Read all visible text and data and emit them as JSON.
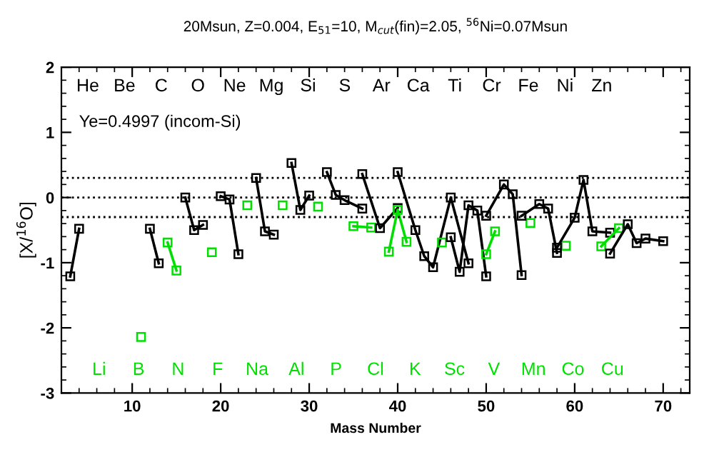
{
  "chart_data": {
    "type": "line",
    "title": "20Msun, Z=0.004, E$_{51}$=10, M$_{cut}$(fin)=2.05, $^{56}$Ni=0.07Msun",
    "xlabel": "Mass Number",
    "ylabel": "[X/$^{16}$O]",
    "xlim": [
      2,
      73
    ],
    "ylim": [
      -3,
      2
    ],
    "xticks": [
      10,
      20,
      30,
      40,
      50,
      60,
      70
    ],
    "yticks": [
      -3,
      -2,
      -1,
      0,
      1,
      2
    ],
    "marker": "square",
    "line_style": "solid",
    "legend": false,
    "grid": false,
    "ref_lines": [
      {
        "axis": "y",
        "value": 0.3,
        "line_style": "dotted",
        "color": "#000000"
      },
      {
        "axis": "y",
        "value": 0,
        "line_style": "dotted",
        "color": "#000000"
      },
      {
        "axis": "y",
        "value": -0.3,
        "line_style": "dotted",
        "color": "#000000"
      }
    ],
    "series": [
      {
        "color": "#000000",
        "x": [
          3,
          4
        ],
        "values": [
          -1.21,
          -0.48
        ]
      },
      {
        "color": "#00e000",
        "x": [
          11
        ],
        "values": [
          -2.14
        ]
      },
      {
        "color": "#000000",
        "x": [
          12,
          13
        ],
        "values": [
          -0.48,
          -1.01
        ]
      },
      {
        "color": "#00e000",
        "x": [
          14,
          15
        ],
        "values": [
          -0.69,
          -1.12
        ]
      },
      {
        "color": "#000000",
        "x": [
          16,
          17,
          18
        ],
        "values": [
          0.0,
          -0.5,
          -0.42
        ]
      },
      {
        "color": "#00e000",
        "x": [
          19
        ],
        "values": [
          -0.84
        ]
      },
      {
        "color": "#000000",
        "x": [
          20,
          21,
          22
        ],
        "values": [
          0.02,
          -0.03,
          -0.87
        ]
      },
      {
        "color": "#00e000",
        "x": [
          23
        ],
        "values": [
          -0.12
        ]
      },
      {
        "color": "#000000",
        "x": [
          24,
          25,
          26
        ],
        "values": [
          0.3,
          -0.52,
          -0.57
        ]
      },
      {
        "color": "#00e000",
        "x": [
          27
        ],
        "values": [
          -0.12
        ]
      },
      {
        "color": "#000000",
        "x": [
          28,
          29,
          30
        ],
        "values": [
          0.53,
          -0.19,
          0.03
        ]
      },
      {
        "color": "#00e000",
        "x": [
          31
        ],
        "values": [
          -0.14
        ]
      },
      {
        "color": "#000000",
        "x": [
          32,
          33,
          34,
          36
        ],
        "values": [
          0.39,
          0.04,
          -0.04,
          -0.17
        ]
      },
      {
        "color": "#00e000",
        "x": [
          35,
          37
        ],
        "values": [
          -0.44,
          -0.46
        ]
      },
      {
        "color": "#000000",
        "x": [
          36,
          38,
          40
        ],
        "values": [
          0.36,
          -0.47,
          -0.16
        ]
      },
      {
        "color": "#00e000",
        "x": [
          39,
          40,
          41
        ],
        "values": [
          -0.83,
          -0.19,
          -0.68
        ]
      },
      {
        "color": "#000000",
        "x": [
          40,
          42,
          43,
          44,
          46,
          48
        ],
        "values": [
          0.39,
          -0.5,
          -0.9,
          -1.07,
          0.0,
          -1.01
        ]
      },
      {
        "color": "#00e000",
        "x": [
          45
        ],
        "values": [
          -0.69
        ]
      },
      {
        "color": "#000000",
        "x": [
          46,
          47,
          48,
          49,
          50
        ],
        "values": [
          -0.61,
          -1.14,
          -0.12,
          -0.2,
          -1.21
        ]
      },
      {
        "color": "#00e000",
        "x": [
          50,
          51
        ],
        "values": [
          -0.87,
          -0.52
        ]
      },
      {
        "color": "#000000",
        "x": [
          50,
          52,
          53,
          54
        ],
        "values": [
          -0.28,
          0.2,
          0.05,
          -1.19
        ]
      },
      {
        "color": "#00e000",
        "x": [
          55
        ],
        "values": [
          -0.39
        ]
      },
      {
        "color": "#000000",
        "x": [
          54,
          56,
          57,
          58
        ],
        "values": [
          -0.28,
          -0.1,
          -0.17,
          -0.85
        ]
      },
      {
        "color": "#00e000",
        "x": [
          59
        ],
        "values": [
          -0.74
        ]
      },
      {
        "color": "#000000",
        "x": [
          58,
          60,
          61,
          62,
          64
        ],
        "values": [
          -0.77,
          -0.31,
          0.27,
          -0.52,
          -0.54
        ]
      },
      {
        "color": "#00e000",
        "x": [
          63,
          65
        ],
        "values": [
          -0.75,
          -0.47
        ]
      },
      {
        "color": "#000000",
        "x": [
          64,
          66,
          67,
          68,
          70
        ],
        "values": [
          -0.86,
          -0.41,
          -0.7,
          -0.63,
          -0.67
        ]
      }
    ],
    "annotations": [
      "Ye=0.4997 (incom-Si)",
      "He Be C O Ne Mg Si S Ar Ca Ti Cr Fe Ni Zn",
      "Li B N F Na Al P Cl K Sc V Mn Co Cu"
    ]
  }
}
